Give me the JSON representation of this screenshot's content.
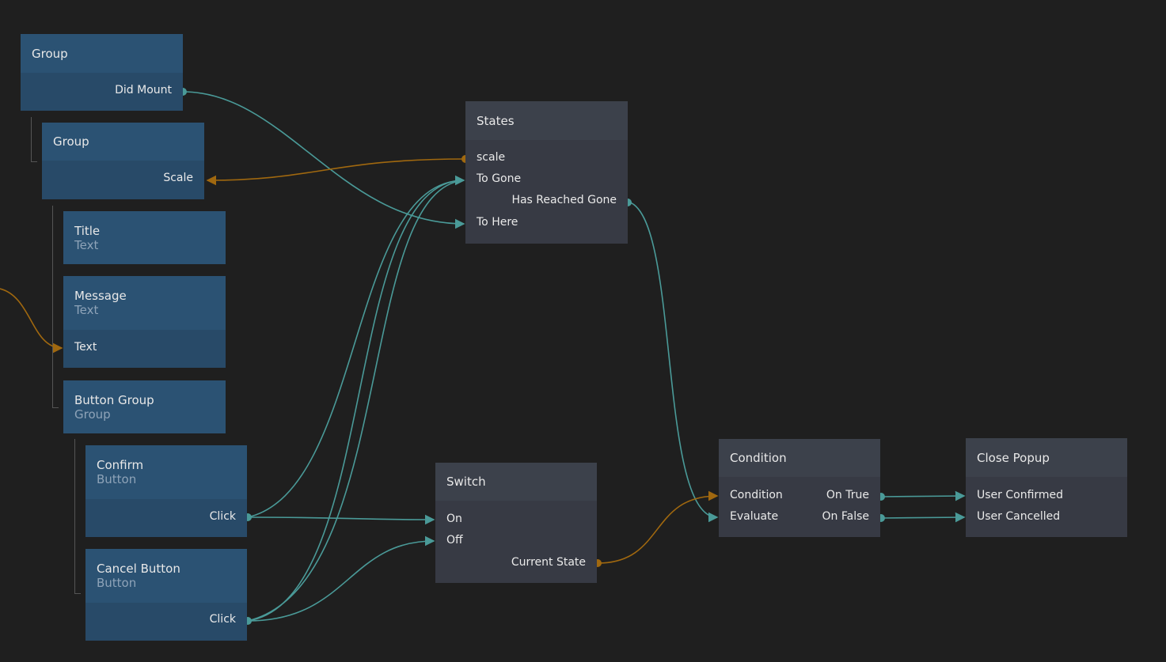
{
  "colors": {
    "background": "#1f1f1f",
    "visual_node": "#2b5273",
    "logic_node": "#3c414b",
    "signal_wire": "#4a9a98",
    "value_wire": "#a0680f"
  },
  "nodes": {
    "group1": {
      "title": "Group",
      "outputs": [
        "Did Mount"
      ]
    },
    "group2": {
      "title": "Group",
      "inputs": [
        "Scale"
      ]
    },
    "title_node": {
      "title": "Title",
      "type": "Text"
    },
    "message": {
      "title": "Message",
      "type": "Text",
      "inputs": [
        "Text"
      ]
    },
    "button_group": {
      "title": "Button Group",
      "type": "Group"
    },
    "confirm": {
      "title": "Confirm",
      "type": "Button",
      "outputs": [
        "Click"
      ]
    },
    "cancel": {
      "title": "Cancel Button",
      "type": "Button",
      "outputs": [
        "Click"
      ]
    },
    "states": {
      "title": "States",
      "ports": [
        "scale",
        "To Gone",
        "Has Reached Gone",
        "To Here"
      ]
    },
    "switch": {
      "title": "Switch",
      "ports": [
        "On",
        "Off",
        "Current State"
      ]
    },
    "condition": {
      "title": "Condition",
      "ports": [
        "Condition",
        "Evaluate",
        "On True",
        "On False"
      ]
    },
    "close_popup": {
      "title": "Close Popup",
      "ports": [
        "User Confirmed",
        "User Cancelled"
      ]
    }
  }
}
